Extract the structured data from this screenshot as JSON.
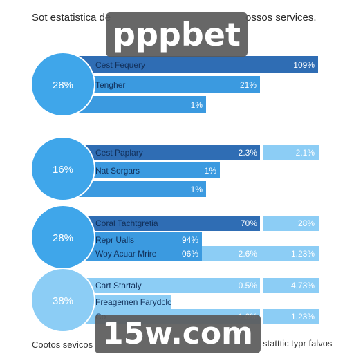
{
  "header": {
    "title_left": "Sot estatistica de",
    "title_right": "ossos services."
  },
  "footer": {
    "left": "Cootos sevicos",
    "right": "statttic typr falvos"
  },
  "watermarks": {
    "top": "pppbet",
    "bottom": "15w.com"
  },
  "colors": {
    "dark_blue": "#2f6db4",
    "mid_blue": "#3b9ae0",
    "light_blue": "#8ccdf5",
    "circle_blue": "#3fa6ea",
    "circle_light": "#8ccdf5"
  },
  "chart_data": [
    {
      "type": "bar",
      "badge": "28%",
      "rows": [
        {
          "label": "Cest Fequery",
          "value_label": "109%",
          "extra": []
        },
        {
          "label": "Tengher",
          "value_label": "21%",
          "extra": []
        },
        {
          "label": "",
          "value_label": "1%",
          "extra": []
        }
      ]
    },
    {
      "type": "bar",
      "badge": "16%",
      "rows": [
        {
          "label": "Cest Paplary",
          "value_label": "2.3%",
          "extra": [
            "2.1%"
          ]
        },
        {
          "label": "Nat Sorgars",
          "value_label": "1%",
          "extra": []
        },
        {
          "label": "",
          "value_label": "1%",
          "extra": []
        }
      ]
    },
    {
      "type": "bar",
      "badge": "28%",
      "rows": [
        {
          "label": "Coral Tachtgretia",
          "value_label": "70%",
          "extra": [
            "28%"
          ]
        },
        {
          "label": "Repr Ualls",
          "value_label": "94%",
          "extra": []
        },
        {
          "label": "Woy Acuar Mrire",
          "value_label": "06%",
          "extra": [
            "2.6%",
            "1.23%"
          ]
        }
      ]
    },
    {
      "type": "bar",
      "badge": "38%",
      "rows": [
        {
          "label": "Cart Startaly",
          "value_label": "0.5%",
          "extra": [
            "4.73%"
          ]
        },
        {
          "label": "Freagemen Farydclc",
          "value_label": "",
          "extra": []
        },
        {
          "label": "Co",
          "value_label": "1.0%",
          "extra": [
            "1.23%"
          ]
        }
      ]
    }
  ]
}
